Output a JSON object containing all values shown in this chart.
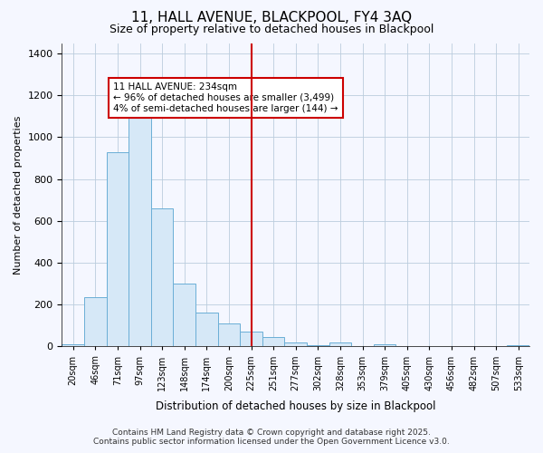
{
  "title": "11, HALL AVENUE, BLACKPOOL, FY4 3AQ",
  "subtitle": "Size of property relative to detached houses in Blackpool",
  "xlabel": "Distribution of detached houses by size in Blackpool",
  "ylabel": "Number of detached properties",
  "categories": [
    "20sqm",
    "46sqm",
    "71sqm",
    "97sqm",
    "123sqm",
    "148sqm",
    "174sqm",
    "200sqm",
    "225sqm",
    "251sqm",
    "277sqm",
    "302sqm",
    "328sqm",
    "353sqm",
    "379sqm",
    "405sqm",
    "430sqm",
    "456sqm",
    "482sqm",
    "507sqm",
    "533sqm"
  ],
  "values": [
    10,
    235,
    930,
    1110,
    660,
    300,
    160,
    110,
    70,
    45,
    20,
    5,
    18,
    3,
    10,
    3,
    2,
    1,
    0,
    0,
    5
  ],
  "bar_color": "#d6e8f7",
  "bar_edge_color": "#6baed6",
  "vline_x_index": 8,
  "vline_color": "#cc0000",
  "annotation_text": "11 HALL AVENUE: 234sqm\n← 96% of detached houses are smaller (3,499)\n4% of semi-detached houses are larger (144) →",
  "annotation_box_color": "#cc0000",
  "ylim": [
    0,
    1450
  ],
  "yticks": [
    0,
    200,
    400,
    600,
    800,
    1000,
    1200,
    1400
  ],
  "background_color": "#f5f7ff",
  "grid_color": "#bbccdd",
  "footer_line1": "Contains HM Land Registry data © Crown copyright and database right 2025.",
  "footer_line2": "Contains public sector information licensed under the Open Government Licence v3.0.",
  "title_fontsize": 11,
  "subtitle_fontsize": 9,
  "annot_fontsize": 7.5,
  "footer_fontsize": 6.5
}
